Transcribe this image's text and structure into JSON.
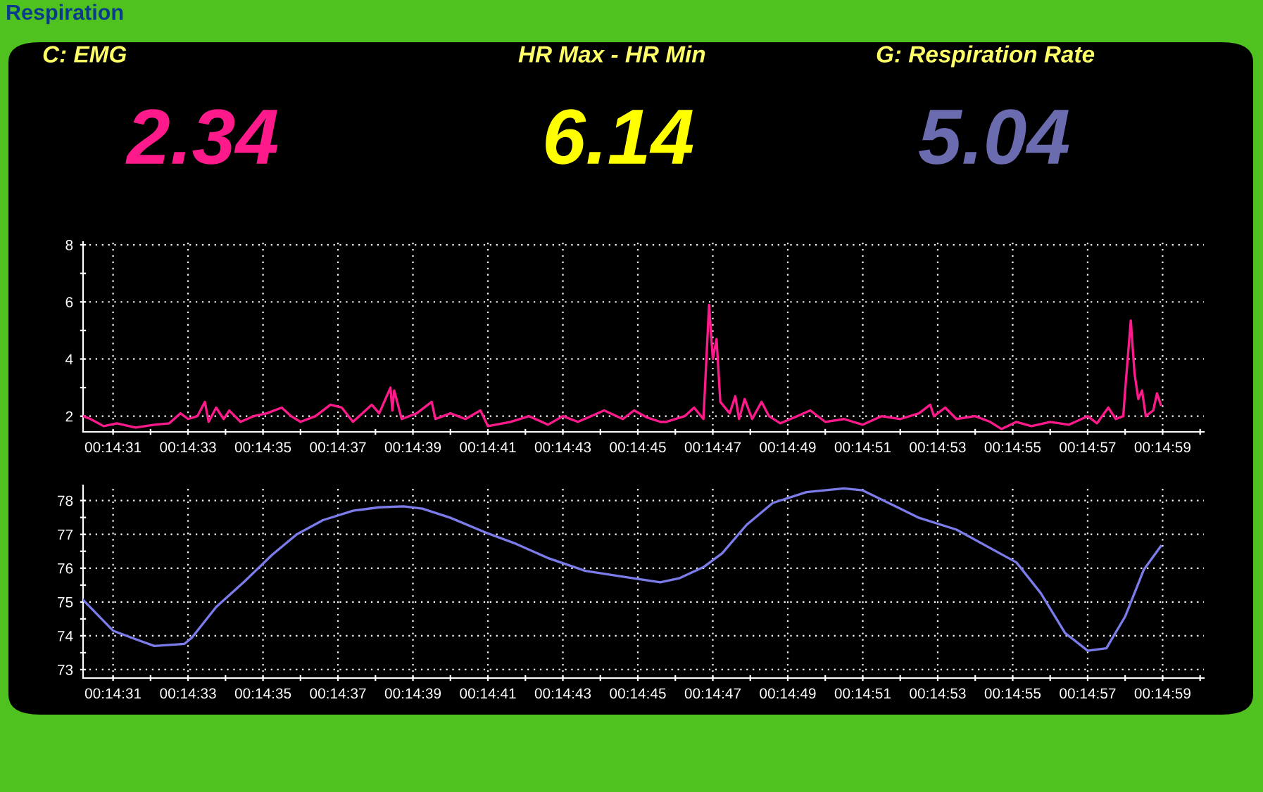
{
  "chart_data": [
    {
      "type": "other",
      "title": "Respiration"
    },
    {
      "type": "other",
      "title": "C: EMG",
      "annotations": [
        "2.34"
      ],
      "color": "#ff1a8c"
    },
    {
      "type": "other",
      "title": "HR Max - HR Min",
      "annotations": [
        "6.14"
      ],
      "color": "#ffff00"
    },
    {
      "type": "other",
      "title": "G: Respiration Rate",
      "annotations": [
        "5.04"
      ],
      "color": "#6b6bb0"
    },
    {
      "type": "line",
      "grid": true,
      "xlim": [
        870.2,
        900.1
      ],
      "ylim": [
        1.45,
        8.1
      ],
      "xticks": [
        {
          "value": 871,
          "label": "00:14:31"
        },
        {
          "value": 872,
          "label": null
        },
        {
          "value": 873,
          "label": "00:14:33"
        },
        {
          "value": 874,
          "label": null
        },
        {
          "value": 875,
          "label": "00:14:35"
        },
        {
          "value": 876,
          "label": null
        },
        {
          "value": 877,
          "label": "00:14:37"
        },
        {
          "value": 878,
          "label": null
        },
        {
          "value": 879,
          "label": "00:14:39"
        },
        {
          "value": 880,
          "label": null
        },
        {
          "value": 881,
          "label": "00:14:41"
        },
        {
          "value": 882,
          "label": null
        },
        {
          "value": 883,
          "label": "00:14:43"
        },
        {
          "value": 884,
          "label": null
        },
        {
          "value": 885,
          "label": "00:14:45"
        },
        {
          "value": 886,
          "label": null
        },
        {
          "value": 887,
          "label": "00:14:47"
        },
        {
          "value": 888,
          "label": null
        },
        {
          "value": 889,
          "label": "00:14:49"
        },
        {
          "value": 890,
          "label": null
        },
        {
          "value": 891,
          "label": "00:14:51"
        },
        {
          "value": 892,
          "label": null
        },
        {
          "value": 893,
          "label": "00:14:53"
        },
        {
          "value": 894,
          "label": null
        },
        {
          "value": 895,
          "label": "00:14:55"
        },
        {
          "value": 896,
          "label": null
        },
        {
          "value": 897,
          "label": "00:14:57"
        },
        {
          "value": 898,
          "label": null
        },
        {
          "value": 899,
          "label": "00:14:59"
        },
        {
          "value": 900,
          "label": null
        }
      ],
      "yticks": [
        2,
        {
          "value": 3,
          "label": null
        },
        4,
        {
          "value": 5,
          "label": null
        },
        6,
        {
          "value": 7,
          "label": null
        },
        8
      ],
      "series": [
        {
          "color": "#ff1a8c",
          "x": [
            870.2,
            870.4,
            870.75,
            871.1,
            871.6,
            872.1,
            872.5,
            872.8,
            873.0,
            873.25,
            873.45,
            873.55,
            873.75,
            873.95,
            874.1,
            874.4,
            874.75,
            875.1,
            875.5,
            875.75,
            876.0,
            876.4,
            876.8,
            877.1,
            877.4,
            877.9,
            878.1,
            878.4,
            878.45,
            878.5,
            878.7,
            879.1,
            879.5,
            879.6,
            880.0,
            880.4,
            880.8,
            881.0,
            881.6,
            882.1,
            882.6,
            883.0,
            883.4,
            883.75,
            884.1,
            884.6,
            884.9,
            885.25,
            885.6,
            885.75,
            886.25,
            886.5,
            886.75,
            886.9,
            887.0,
            887.1,
            887.2,
            887.45,
            887.6,
            887.7,
            887.85,
            888.05,
            888.3,
            888.5,
            888.8,
            889.25,
            889.6,
            890.0,
            890.5,
            891.0,
            891.5,
            892.0,
            892.5,
            892.8,
            892.9,
            893.2,
            893.5,
            894.0,
            894.4,
            894.7,
            895.1,
            895.5,
            896.0,
            896.5,
            897.0,
            897.25,
            897.55,
            897.75,
            897.95,
            898.0,
            898.15,
            898.25,
            898.35,
            898.45,
            898.55,
            898.75,
            898.85,
            898.95
          ],
          "values": [
            2.0,
            1.9,
            1.65,
            1.75,
            1.6,
            1.7,
            1.75,
            2.1,
            1.9,
            2.0,
            2.5,
            1.8,
            2.3,
            1.9,
            2.2,
            1.8,
            2.0,
            2.1,
            2.3,
            2.0,
            1.8,
            2.0,
            2.4,
            2.3,
            1.8,
            2.4,
            2.1,
            3.0,
            2.2,
            2.9,
            1.9,
            2.1,
            2.5,
            1.9,
            2.1,
            1.9,
            2.2,
            1.65,
            1.8,
            2.0,
            1.7,
            2.0,
            1.8,
            2.0,
            2.2,
            1.9,
            2.2,
            1.95,
            1.8,
            1.8,
            2.0,
            2.3,
            1.9,
            5.9,
            4.0,
            4.7,
            2.5,
            2.1,
            2.7,
            1.9,
            2.6,
            1.9,
            2.5,
            2.0,
            1.75,
            2.0,
            2.2,
            1.8,
            1.9,
            1.7,
            2.0,
            1.9,
            2.1,
            2.4,
            2.0,
            2.3,
            1.9,
            2.0,
            1.8,
            1.55,
            1.8,
            1.65,
            1.8,
            1.7,
            2.0,
            1.75,
            2.3,
            1.9,
            2.0,
            2.9,
            5.35,
            3.5,
            2.6,
            2.9,
            2.0,
            2.2,
            2.8,
            2.4
          ]
        }
      ]
    },
    {
      "type": "line",
      "grid": true,
      "xlim": [
        870.2,
        900.1
      ],
      "ylim": [
        72.75,
        78.45
      ],
      "xticks": [
        {
          "value": 871,
          "label": "00:14:31"
        },
        {
          "value": 872,
          "label": null
        },
        {
          "value": 873,
          "label": "00:14:33"
        },
        {
          "value": 874,
          "label": null
        },
        {
          "value": 875,
          "label": "00:14:35"
        },
        {
          "value": 876,
          "label": null
        },
        {
          "value": 877,
          "label": "00:14:37"
        },
        {
          "value": 878,
          "label": null
        },
        {
          "value": 879,
          "label": "00:14:39"
        },
        {
          "value": 880,
          "label": null
        },
        {
          "value": 881,
          "label": "00:14:41"
        },
        {
          "value": 882,
          "label": null
        },
        {
          "value": 883,
          "label": "00:14:43"
        },
        {
          "value": 884,
          "label": null
        },
        {
          "value": 885,
          "label": "00:14:45"
        },
        {
          "value": 886,
          "label": null
        },
        {
          "value": 887,
          "label": "00:14:47"
        },
        {
          "value": 888,
          "label": null
        },
        {
          "value": 889,
          "label": "00:14:49"
        },
        {
          "value": 890,
          "label": null
        },
        {
          "value": 891,
          "label": "00:14:51"
        },
        {
          "value": 892,
          "label": null
        },
        {
          "value": 893,
          "label": "00:14:53"
        },
        {
          "value": 894,
          "label": null
        },
        {
          "value": 895,
          "label": "00:14:55"
        },
        {
          "value": 896,
          "label": null
        },
        {
          "value": 897,
          "label": "00:14:57"
        },
        {
          "value": 898,
          "label": null
        },
        {
          "value": 899,
          "label": "00:14:59"
        },
        {
          "value": 900,
          "label": null
        }
      ],
      "yticks": [
        73,
        {
          "value": 73.5,
          "label": null
        },
        74,
        {
          "value": 74.5,
          "label": null
        },
        75,
        {
          "value": 75.5,
          "label": null
        },
        76,
        {
          "value": 76.5,
          "label": null
        },
        77,
        {
          "value": 77.5,
          "label": null
        },
        78
      ],
      "series": [
        {
          "color": "#7b7bea",
          "x": [
            870.2,
            871.0,
            871.6,
            872.1,
            872.9,
            873.1,
            873.75,
            874.5,
            875.25,
            875.9,
            876.6,
            877.4,
            878.1,
            878.75,
            879.25,
            880.0,
            880.9,
            881.75,
            882.6,
            883.6,
            884.6,
            885.6,
            886.1,
            886.75,
            887.25,
            887.9,
            888.6,
            889.5,
            890.5,
            891.0,
            892.5,
            893.5,
            895.1,
            895.75,
            896.4,
            897.0,
            897.5,
            898.0,
            898.5,
            898.95
          ],
          "values": [
            75.06,
            74.15,
            73.9,
            73.7,
            73.76,
            73.94,
            74.85,
            75.6,
            76.4,
            77.0,
            77.42,
            77.7,
            77.8,
            77.83,
            77.76,
            77.49,
            77.07,
            76.72,
            76.3,
            75.92,
            75.75,
            75.58,
            75.7,
            76.03,
            76.44,
            77.28,
            77.93,
            78.25,
            78.36,
            78.3,
            77.49,
            77.14,
            76.17,
            75.26,
            74.08,
            73.56,
            73.63,
            74.57,
            75.96,
            76.65
          ]
        }
      ]
    }
  ]
}
